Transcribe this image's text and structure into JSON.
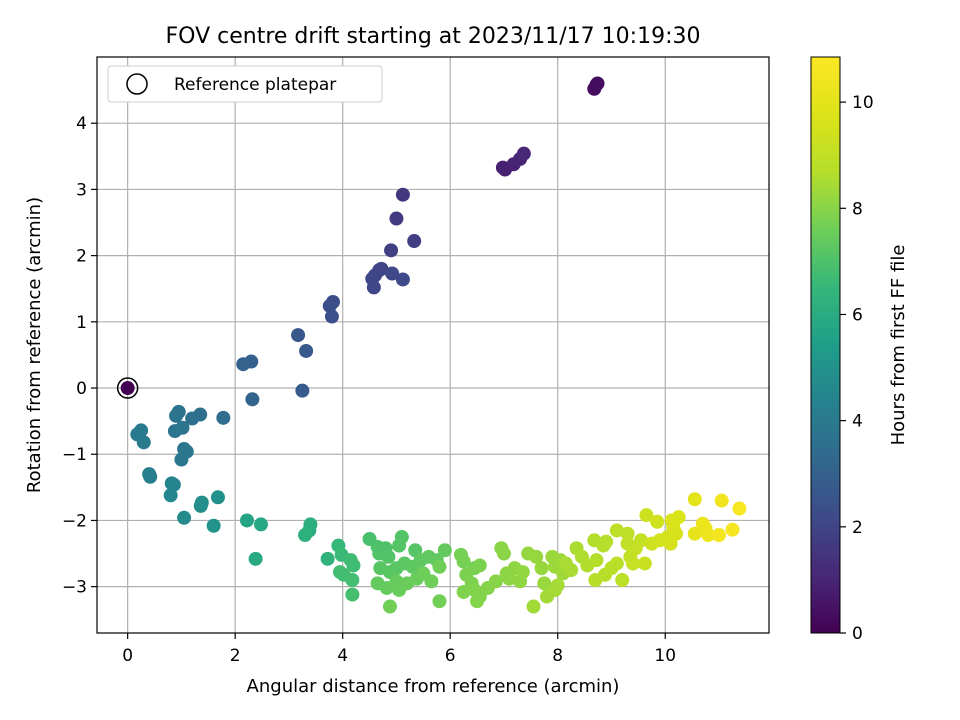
{
  "chart_data": {
    "type": "scatter",
    "title": "FOV centre drift starting at 2023/11/17 10:19:30",
    "xlabel": "Angular distance from reference (arcmin)",
    "ylabel": "Rotation from reference (arcmin)",
    "xlim": [
      -0.57,
      11.93
    ],
    "ylim": [
      -3.7,
      5.0
    ],
    "xticks": [
      0,
      2,
      4,
      6,
      8,
      10
    ],
    "yticks": [
      -3,
      -2,
      -1,
      0,
      1,
      2,
      3,
      4
    ],
    "grid": true,
    "legend": {
      "placement": "top-left",
      "entries": [
        "Reference platepar"
      ]
    },
    "reference_point": {
      "x": 0.0,
      "y": 0.0
    },
    "colorbar": {
      "label": "Hours from first FF file",
      "colormap": "viridis",
      "range": [
        0,
        10.85
      ],
      "ticks": [
        0,
        2,
        4,
        6,
        8,
        10
      ]
    },
    "series": [
      {
        "points": [
          [
            0.0,
            0.0,
            0.0
          ],
          [
            8.68,
            4.52,
            0.3
          ],
          [
            8.72,
            4.58,
            0.32
          ],
          [
            8.74,
            4.6,
            0.33
          ],
          [
            6.98,
            3.33,
            0.9
          ],
          [
            7.02,
            3.3,
            0.92
          ],
          [
            7.18,
            3.38,
            0.98
          ],
          [
            7.3,
            3.46,
            1.02
          ],
          [
            7.37,
            3.54,
            1.05
          ],
          [
            5.12,
            2.92,
            1.6
          ],
          [
            5.0,
            2.56,
            1.7
          ],
          [
            5.33,
            2.22,
            1.8
          ],
          [
            4.9,
            2.08,
            1.85
          ],
          [
            4.6,
            1.7,
            1.95
          ],
          [
            4.68,
            1.78,
            1.98
          ],
          [
            4.72,
            1.8,
            2.0
          ],
          [
            4.55,
            1.65,
            2.05
          ],
          [
            4.58,
            1.52,
            2.08
          ],
          [
            4.92,
            1.73,
            2.1
          ],
          [
            5.12,
            1.64,
            2.15
          ],
          [
            3.82,
            1.3,
            2.3
          ],
          [
            3.76,
            1.24,
            2.35
          ],
          [
            3.8,
            1.08,
            2.4
          ],
          [
            3.17,
            0.8,
            2.6
          ],
          [
            3.32,
            0.56,
            2.7
          ],
          [
            3.25,
            -0.04,
            2.8
          ],
          [
            2.3,
            0.4,
            3.0
          ],
          [
            2.15,
            0.36,
            3.05
          ],
          [
            2.32,
            -0.17,
            3.1
          ],
          [
            1.78,
            -0.45,
            3.5
          ],
          [
            1.35,
            -0.4,
            3.6
          ],
          [
            1.2,
            -0.46,
            3.65
          ],
          [
            0.95,
            -0.36,
            3.7
          ],
          [
            0.9,
            -0.42,
            3.72
          ],
          [
            1.02,
            -0.6,
            3.75
          ],
          [
            0.88,
            -0.65,
            3.78
          ],
          [
            1.05,
            -0.92,
            3.85
          ],
          [
            1.1,
            -0.96,
            3.88
          ],
          [
            1.0,
            -1.08,
            3.9
          ],
          [
            0.25,
            -0.64,
            4.0
          ],
          [
            0.18,
            -0.7,
            4.02
          ],
          [
            0.3,
            -0.82,
            4.05
          ],
          [
            0.4,
            -1.3,
            4.2
          ],
          [
            0.42,
            -1.34,
            4.22
          ],
          [
            0.82,
            -1.44,
            4.4
          ],
          [
            0.86,
            -1.46,
            4.42
          ],
          [
            0.8,
            -1.62,
            4.45
          ],
          [
            1.05,
            -1.96,
            4.7
          ],
          [
            1.38,
            -1.73,
            4.8
          ],
          [
            1.36,
            -1.78,
            4.82
          ],
          [
            1.68,
            -1.65,
            4.9
          ],
          [
            1.6,
            -2.08,
            5.0
          ],
          [
            2.22,
            -2.0,
            5.7
          ],
          [
            2.48,
            -2.06,
            5.8
          ],
          [
            2.38,
            -2.58,
            5.9
          ],
          [
            3.4,
            -2.06,
            6.1
          ],
          [
            3.38,
            -2.15,
            6.12
          ],
          [
            3.3,
            -2.22,
            6.15
          ],
          [
            3.72,
            -2.58,
            6.3
          ],
          [
            3.92,
            -2.38,
            6.5
          ],
          [
            3.98,
            -2.52,
            6.6
          ],
          [
            4.15,
            -2.6,
            6.7
          ],
          [
            4.2,
            -2.68,
            6.72
          ],
          [
            3.95,
            -2.78,
            6.75
          ],
          [
            4.02,
            -2.82,
            6.78
          ],
          [
            4.18,
            -2.9,
            6.8
          ],
          [
            4.18,
            -3.12,
            6.82
          ],
          [
            4.5,
            -2.28,
            6.9
          ],
          [
            4.65,
            -2.4,
            7.0
          ],
          [
            4.8,
            -2.42,
            7.02
          ],
          [
            4.68,
            -2.5,
            7.05
          ],
          [
            4.85,
            -2.55,
            7.08
          ],
          [
            5.1,
            -2.25,
            7.1
          ],
          [
            5.05,
            -2.38,
            7.12
          ],
          [
            5.35,
            -2.45,
            7.15
          ],
          [
            4.7,
            -2.72,
            7.18
          ],
          [
            4.88,
            -2.78,
            7.2
          ],
          [
            5.0,
            -2.72,
            7.22
          ],
          [
            5.15,
            -2.65,
            7.25
          ],
          [
            5.3,
            -2.7,
            7.28
          ],
          [
            5.45,
            -2.6,
            7.3
          ],
          [
            5.6,
            -2.55,
            7.32
          ],
          [
            5.75,
            -2.6,
            7.35
          ],
          [
            5.9,
            -2.45,
            7.38
          ],
          [
            4.65,
            -2.95,
            7.4
          ],
          [
            4.82,
            -3.02,
            7.42
          ],
          [
            5.0,
            -2.92,
            7.45
          ],
          [
            5.05,
            -3.05,
            7.48
          ],
          [
            5.2,
            -2.95,
            7.5
          ],
          [
            5.38,
            -2.88,
            7.52
          ],
          [
            5.5,
            -2.8,
            7.55
          ],
          [
            5.65,
            -2.92,
            7.58
          ],
          [
            5.8,
            -2.7,
            7.6
          ],
          [
            4.88,
            -3.3,
            7.62
          ],
          [
            5.8,
            -3.22,
            7.65
          ],
          [
            6.2,
            -2.52,
            7.7
          ],
          [
            6.25,
            -2.62,
            7.72
          ],
          [
            6.45,
            -2.72,
            7.75
          ],
          [
            6.55,
            -2.68,
            7.78
          ],
          [
            6.3,
            -2.82,
            7.8
          ],
          [
            6.4,
            -2.95,
            7.82
          ],
          [
            6.25,
            -3.08,
            7.85
          ],
          [
            6.45,
            -3.05,
            7.88
          ],
          [
            6.55,
            -3.15,
            7.9
          ],
          [
            6.5,
            -3.22,
            7.92
          ],
          [
            6.7,
            -3.02,
            7.95
          ],
          [
            6.85,
            -2.92,
            7.98
          ],
          [
            6.95,
            -2.42,
            8.0
          ],
          [
            7.0,
            -2.5,
            8.02
          ],
          [
            7.05,
            -2.8,
            8.05
          ],
          [
            7.1,
            -2.88,
            8.08
          ],
          [
            7.2,
            -2.72,
            8.1
          ],
          [
            7.3,
            -2.92,
            8.12
          ],
          [
            7.35,
            -2.78,
            8.15
          ],
          [
            7.45,
            -2.5,
            8.18
          ],
          [
            7.6,
            -2.55,
            8.2
          ],
          [
            7.7,
            -2.72,
            8.22
          ],
          [
            7.75,
            -2.95,
            8.25
          ],
          [
            7.9,
            -2.55,
            8.28
          ],
          [
            7.95,
            -2.7,
            8.3
          ],
          [
            8.05,
            -2.6,
            8.32
          ],
          [
            8.1,
            -2.8,
            8.35
          ],
          [
            7.55,
            -3.3,
            8.38
          ],
          [
            7.8,
            -3.15,
            8.4
          ],
          [
            7.95,
            -3.05,
            8.42
          ],
          [
            8.0,
            -2.98,
            8.45
          ],
          [
            8.15,
            -2.65,
            8.48
          ],
          [
            8.25,
            -2.75,
            8.5
          ],
          [
            8.35,
            -2.42,
            8.55
          ],
          [
            8.45,
            -2.55,
            8.58
          ],
          [
            8.55,
            -2.68,
            8.6
          ],
          [
            8.68,
            -2.3,
            8.65
          ],
          [
            8.72,
            -2.6,
            8.68
          ],
          [
            8.85,
            -2.38,
            8.7
          ],
          [
            8.9,
            -2.32,
            8.72
          ],
          [
            8.7,
            -2.9,
            8.75
          ],
          [
            8.88,
            -2.82,
            8.78
          ],
          [
            9.0,
            -2.72,
            8.8
          ],
          [
            9.1,
            -2.65,
            8.85
          ],
          [
            9.2,
            -2.9,
            8.88
          ],
          [
            9.1,
            -2.15,
            8.9
          ],
          [
            9.3,
            -2.2,
            8.95
          ],
          [
            9.3,
            -2.35,
            8.98
          ],
          [
            9.35,
            -2.55,
            9.0
          ],
          [
            9.45,
            -2.42,
            9.05
          ],
          [
            9.55,
            -2.3,
            9.1
          ],
          [
            9.4,
            -2.65,
            9.15
          ],
          [
            9.62,
            -2.65,
            9.2
          ],
          [
            9.65,
            -1.92,
            9.3
          ],
          [
            9.75,
            -2.35,
            9.35
          ],
          [
            9.85,
            -2.02,
            9.4
          ],
          [
            9.9,
            -2.3,
            9.45
          ],
          [
            10.05,
            -2.25,
            9.5
          ],
          [
            10.1,
            -2.35,
            9.55
          ],
          [
            10.2,
            -2.2,
            9.6
          ],
          [
            10.15,
            -2.1,
            9.62
          ],
          [
            10.12,
            -2.0,
            9.65
          ],
          [
            10.25,
            -1.95,
            9.7
          ],
          [
            10.55,
            -1.68,
            10.0
          ],
          [
            10.55,
            -2.2,
            10.1
          ],
          [
            10.7,
            -2.05,
            10.2
          ],
          [
            10.75,
            -2.12,
            10.25
          ],
          [
            10.8,
            -2.22,
            10.3
          ],
          [
            11.05,
            -1.7,
            10.4
          ],
          [
            11.0,
            -2.22,
            10.5
          ],
          [
            11.25,
            -2.14,
            10.6
          ],
          [
            11.38,
            -1.82,
            10.7
          ]
        ]
      }
    ]
  }
}
